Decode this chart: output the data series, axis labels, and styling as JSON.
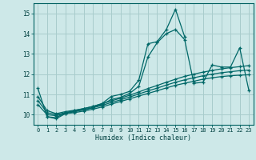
{
  "background_color": "#cde8e8",
  "grid_color": "#a8cccc",
  "line_color": "#006868",
  "xlabel": "Humidex (Indice chaleur)",
  "xlim": [
    -0.5,
    23.5
  ],
  "ylim": [
    9.5,
    15.5
  ],
  "yticks": [
    10,
    11,
    12,
    13,
    14,
    15
  ],
  "xticks": [
    0,
    1,
    2,
    3,
    4,
    5,
    6,
    7,
    8,
    9,
    10,
    11,
    12,
    13,
    14,
    15,
    16,
    17,
    18,
    19,
    20,
    21,
    22,
    23
  ],
  "lines": [
    {
      "x": [
        0,
        1,
        2,
        3,
        4,
        5,
        6,
        7,
        8,
        9,
        10,
        11,
        12,
        13,
        14,
        15,
        16
      ],
      "y": [
        11.3,
        9.9,
        9.85,
        10.1,
        10.2,
        10.3,
        10.4,
        10.55,
        10.9,
        11.0,
        11.15,
        11.7,
        13.5,
        13.6,
        14.2,
        15.2,
        13.85
      ]
    },
    {
      "x": [
        1,
        2,
        3,
        4,
        5,
        6,
        7,
        8,
        9,
        10,
        11,
        12,
        13,
        14,
        15,
        16,
        17,
        18,
        19,
        20,
        21,
        22,
        23
      ],
      "y": [
        9.9,
        9.8,
        10.05,
        10.15,
        10.25,
        10.35,
        10.5,
        10.75,
        10.85,
        11.05,
        11.4,
        12.85,
        13.55,
        14.0,
        14.2,
        13.7,
        11.55,
        11.6,
        12.45,
        12.35,
        12.35,
        13.3,
        11.2
      ]
    },
    {
      "x": [
        0,
        1,
        2,
        3,
        4,
        5,
        6,
        7,
        8,
        9,
        10,
        11,
        12,
        13,
        14,
        15,
        16,
        17,
        18,
        19,
        20,
        21,
        22,
        23
      ],
      "y": [
        10.5,
        10.0,
        9.95,
        10.05,
        10.1,
        10.18,
        10.27,
        10.38,
        10.52,
        10.65,
        10.78,
        10.92,
        11.05,
        11.18,
        11.32,
        11.45,
        11.55,
        11.65,
        11.75,
        11.82,
        11.88,
        11.92,
        11.95,
        11.97
      ]
    },
    {
      "x": [
        0,
        1,
        2,
        3,
        4,
        5,
        6,
        7,
        8,
        9,
        10,
        11,
        12,
        13,
        14,
        15,
        16,
        17,
        18,
        19,
        20,
        21,
        22,
        23
      ],
      "y": [
        10.7,
        10.1,
        10.0,
        10.1,
        10.16,
        10.24,
        10.34,
        10.46,
        10.6,
        10.73,
        10.87,
        11.02,
        11.17,
        11.31,
        11.46,
        11.6,
        11.72,
        11.82,
        11.92,
        12.0,
        12.07,
        12.12,
        12.17,
        12.2
      ]
    },
    {
      "x": [
        0,
        1,
        2,
        3,
        4,
        5,
        6,
        7,
        8,
        9,
        10,
        11,
        12,
        13,
        14,
        15,
        16,
        17,
        18,
        19,
        20,
        21,
        22,
        23
      ],
      "y": [
        10.9,
        10.2,
        10.05,
        10.15,
        10.22,
        10.3,
        10.41,
        10.54,
        10.68,
        10.81,
        10.96,
        11.12,
        11.29,
        11.44,
        11.6,
        11.75,
        11.89,
        12.0,
        12.1,
        12.18,
        12.26,
        12.32,
        12.37,
        12.42
      ]
    }
  ]
}
